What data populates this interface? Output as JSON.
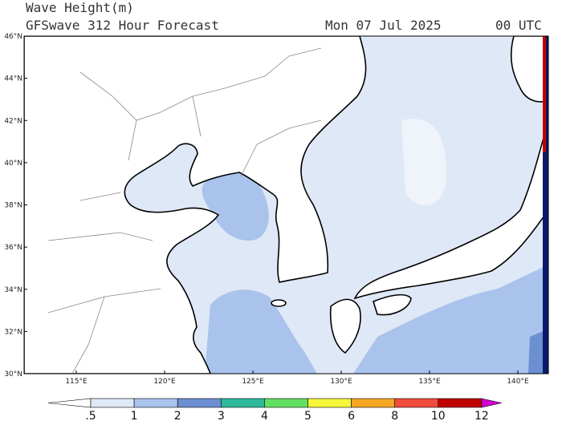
{
  "header": {
    "title": "Wave Height(m)",
    "subtitle": "GFSwave 312 Hour Forecast",
    "date": "Mon 07 Jul 2025",
    "time": "00 UTC"
  },
  "map": {
    "lat_labels": [
      "46°N",
      "44°N",
      "42°N",
      "40°N",
      "38°N",
      "36°N",
      "34°N",
      "32°N",
      "30°N"
    ],
    "lon_labels": [
      "115°E",
      "120°E",
      "125°E",
      "130°E",
      "135°E",
      "140°E"
    ]
  },
  "colorbar": {
    "labels": [
      ".5",
      "1",
      "2",
      "3",
      "4",
      "5",
      "6",
      "8",
      "10",
      "12"
    ],
    "colors": [
      "#ffffff",
      "#dfe8f6",
      "#a9c3ec",
      "#6b8fd0",
      "#2fb89a",
      "#62e062",
      "#f5f53a",
      "#f5a623",
      "#ef4b3c",
      "#c00000",
      "#d000d0"
    ]
  }
}
